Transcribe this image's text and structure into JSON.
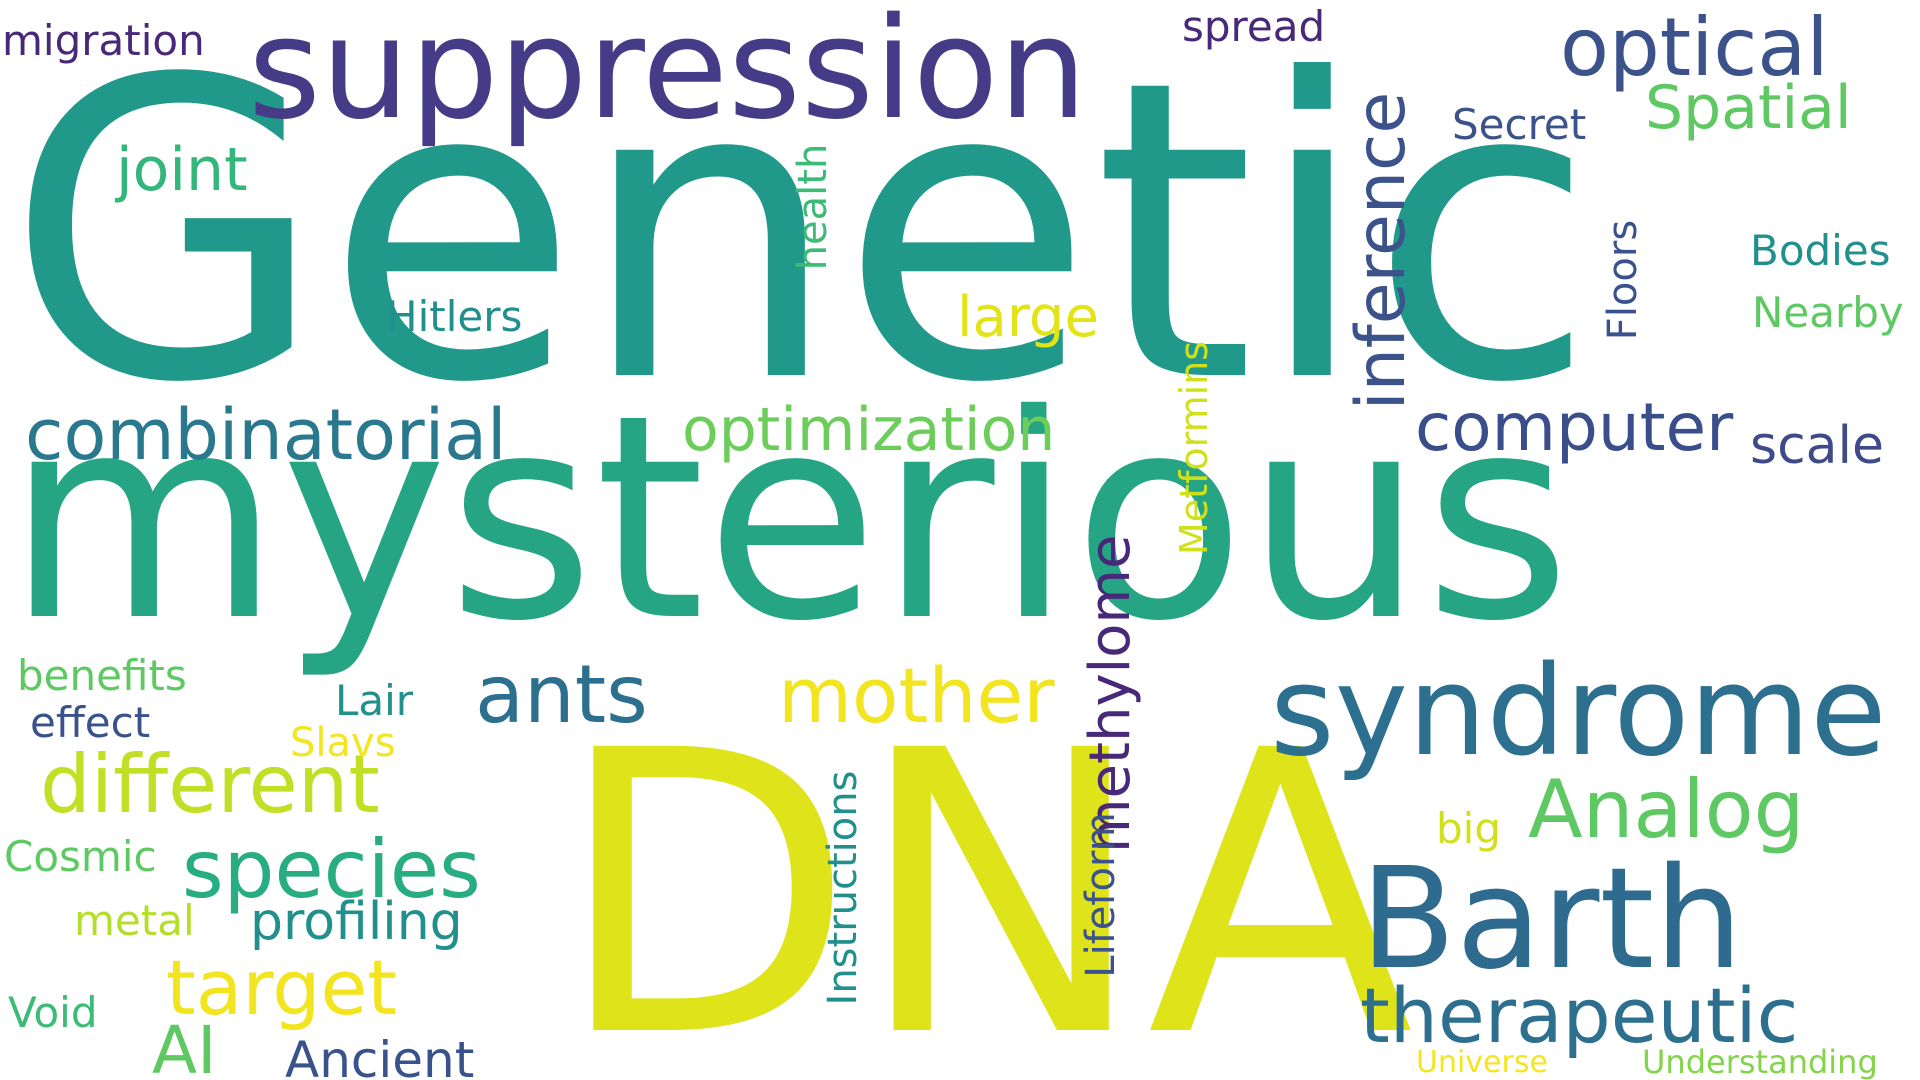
{
  "words": {
    "genetic": "Genetic",
    "mysterious": "mysterious",
    "dna": "DNA",
    "suppression": "suppression",
    "syndrome": "syndrome",
    "barth": "Barth",
    "inference": "inference",
    "optical": "optical",
    "combinatorial": "combinatorial",
    "optimization": "optimization",
    "computer": "computer",
    "therapeutic": "therapeutic",
    "analog": "Analog",
    "mother": "mother",
    "ants": "ants",
    "different": "different",
    "species": "species",
    "target": "target",
    "methylome": "methylome",
    "profiling": "profiling",
    "ai": "AI",
    "ancient": "Ancient",
    "joint": "joint",
    "spatial": "Spatial",
    "migration": "migration",
    "spread": "spread",
    "secret": "Secret",
    "health": "health",
    "floors": "Floors",
    "bodies": "Bodies",
    "nearby": "Nearby",
    "hitlers": "Hitlers",
    "large": "large",
    "metformins": "Metformins",
    "scale": "scale",
    "benefits": "benefits",
    "effect": "effect",
    "lair": "Lair",
    "slavs": "Slavs",
    "cosmic": "Cosmic",
    "metal": "metal",
    "void": "Void",
    "instructions": "Instructions",
    "lifeform": "Lifeform",
    "big": "big",
    "universe": "Universe",
    "understanding": "Understanding"
  },
  "colors": {
    "dark_purple": "#440154",
    "indigo": "#3b3f8c",
    "slate_blue": "#3a528b",
    "steel_blue": "#31688e",
    "blue_teal": "#2c728e",
    "teal": "#21918c",
    "green_teal": "#1fa187",
    "sea_green": "#29af7f",
    "green": "#3bbb75",
    "light_green": "#5ec962",
    "lime_green": "#84d44b",
    "yellow_green": "#b5de2b",
    "lime_yellow": "#d0e11c",
    "yellow": "#f4e61e"
  }
}
